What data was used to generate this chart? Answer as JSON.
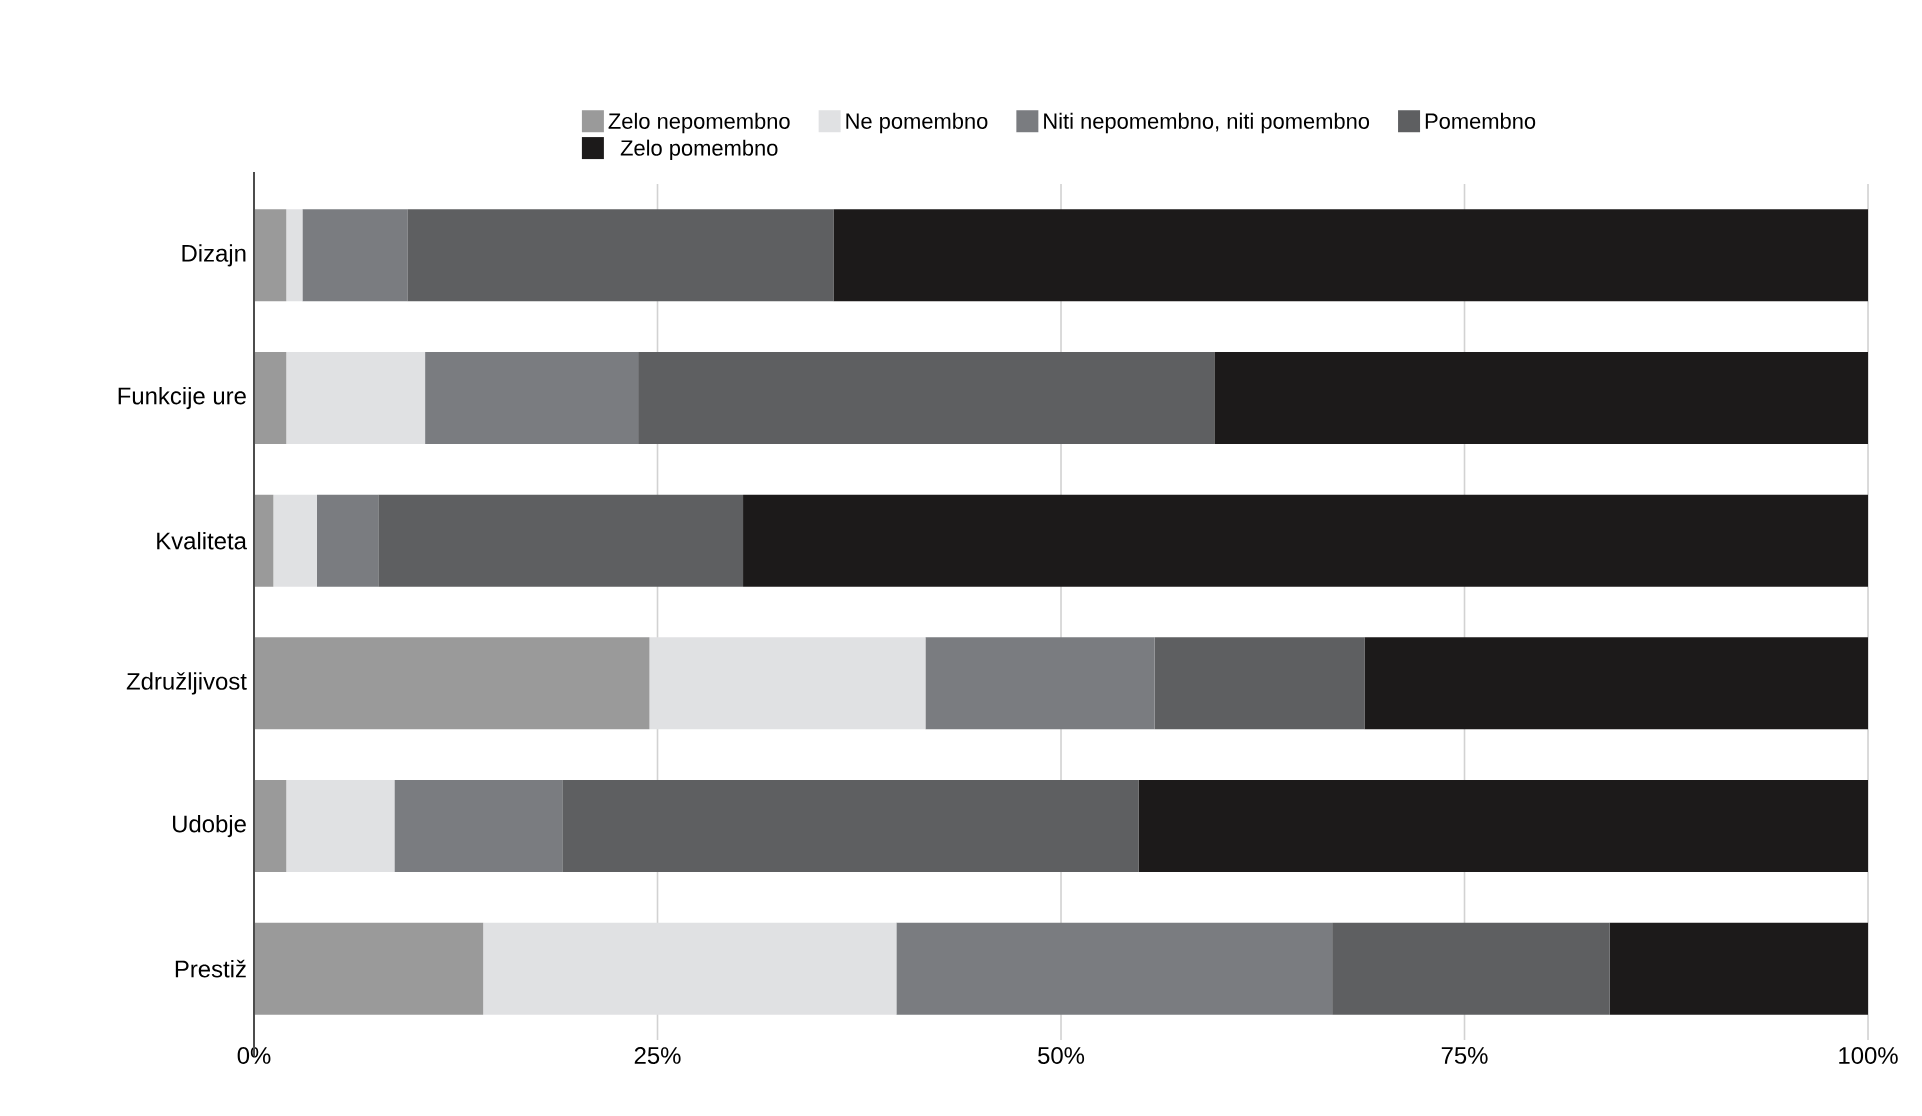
{
  "chart_data": {
    "type": "bar",
    "orientation": "horizontal",
    "stacked": true,
    "categories": [
      "Dizajn",
      "Funkcije ure",
      "Kvaliteta",
      "Združljivost",
      "Udobje",
      "Prestiž"
    ],
    "series": [
      {
        "name": "Zelo nepomembno",
        "color": "#9a9a9a",
        "values": [
          2.0,
          2.0,
          1.2,
          24.5,
          2.0,
          14.2
        ]
      },
      {
        "name": "Ne pomembno",
        "color": "#e0e1e3",
        "values": [
          1.0,
          8.6,
          2.7,
          17.1,
          6.7,
          25.6
        ]
      },
      {
        "name": "Niti nepomembno, niti pomembno",
        "color": "#7a7c80",
        "values": [
          6.5,
          13.2,
          3.8,
          14.2,
          10.4,
          27.0
        ]
      },
      {
        "name": "Pomembno",
        "color": "#5e5f61",
        "values": [
          26.4,
          35.7,
          22.6,
          13.0,
          35.7,
          17.2
        ]
      },
      {
        "name": "Zelo pomembno",
        "color": "#1c1a1a",
        "values": [
          64.1,
          40.5,
          69.7,
          31.2,
          45.2,
          16.0
        ]
      }
    ],
    "xlim": [
      0,
      100
    ],
    "xticks": [
      {
        "value": 0,
        "label": "0%"
      },
      {
        "value": 25,
        "label": "25%"
      },
      {
        "value": 50,
        "label": "50%"
      },
      {
        "value": 75,
        "label": "75%"
      },
      {
        "value": 100,
        "label": "100%"
      }
    ],
    "grid": "x",
    "legend": "top"
  }
}
